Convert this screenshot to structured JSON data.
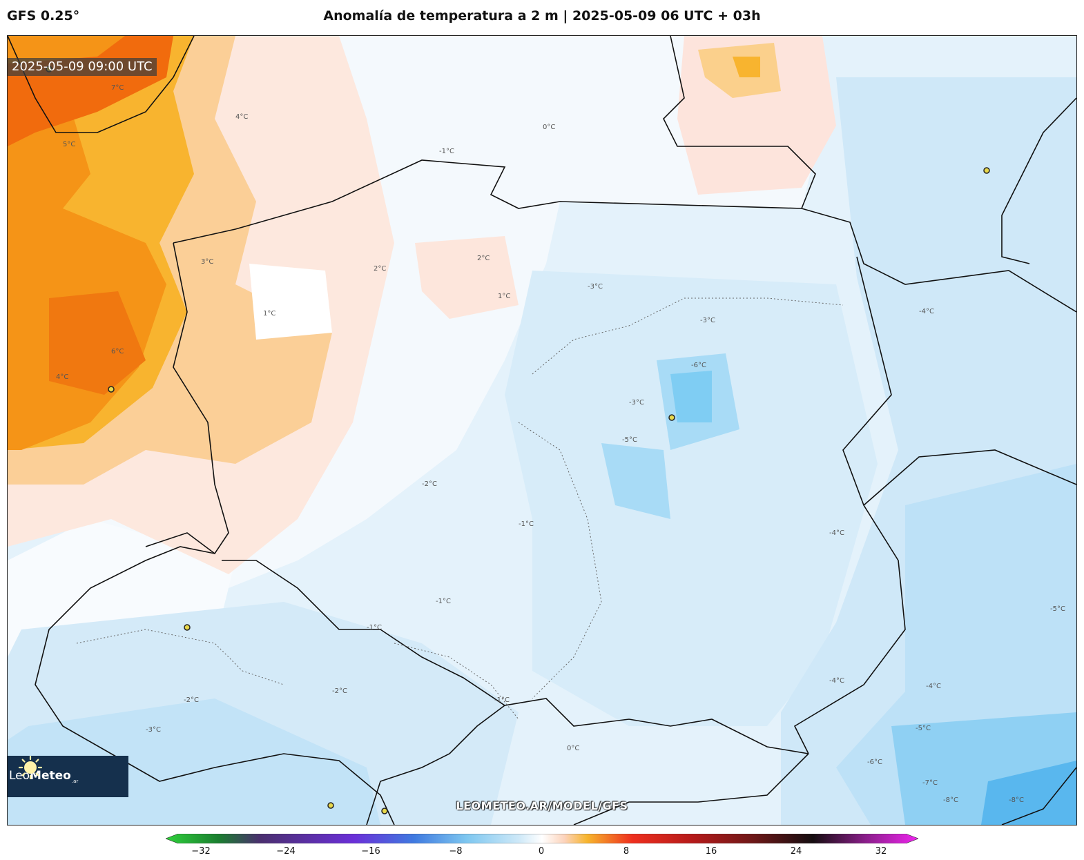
{
  "header": {
    "model": "GFS 0.25°",
    "title": "Anomalía de temperatura a 2 m | 2025-05-09 06 UTC + 03h"
  },
  "map": {
    "valid_time": "2025-05-09 09:00 UTC",
    "watermark_url": "LEOMETEO.AR/MODEL/GFS",
    "logo": {
      "text_a": "Leo",
      "text_b": "Meteo",
      "suffix": ".ar"
    },
    "contour_labels": [
      "6°C",
      "7°C",
      "4°C",
      "5°C",
      "4°C",
      "3°C",
      "2°C",
      "1°C",
      "0°C",
      "-1°C",
      "-2°C",
      "-3°C",
      "-4°C",
      "-5°C",
      "-6°C",
      "-7°C",
      "-8°C"
    ]
  },
  "colorbar": {
    "ticks": [
      "−32",
      "−24",
      "−16",
      "−8",
      "0",
      "8",
      "16",
      "24",
      "32"
    ],
    "colors": {
      "neg32": "#2fd13b",
      "neg24": "#4a2f6e",
      "neg16": "#6a2fd8",
      "neg8": "#3f8be8",
      "neg2": "#bfe3f8",
      "zero": "#ffffff",
      "pos2": "#fcd3bb",
      "pos4": "#f7b52d",
      "pos8": "#ee2f1e",
      "pos16": "#6e1818",
      "pos24": "#150d10",
      "pos32": "#ef24ef"
    }
  }
}
